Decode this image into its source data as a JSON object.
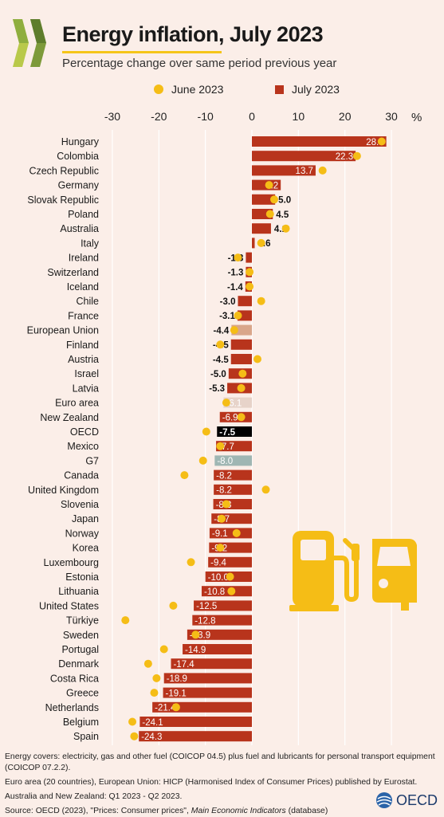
{
  "header": {
    "title": "Energy inflation, July 2023",
    "subtitle": "Percentage change over same period previous year"
  },
  "legend": {
    "june_label": "June 2023",
    "july_label": "July 2023"
  },
  "colors": {
    "bar_default": "#b8341c",
    "bar_oecd": "#000000",
    "bar_european_union": "#d9a68a",
    "bar_euro_area": "#e7d3c9",
    "bar_g7": "#9fb6b3",
    "june_dot": "#f5bd16",
    "accent": "#f5c518",
    "background": "#fbeee8"
  },
  "chart_data": {
    "type": "bar",
    "orientation": "horizontal",
    "x_unit": "%",
    "xlim": [
      -30,
      30
    ],
    "x_ticks": [
      -30,
      -20,
      -10,
      0,
      10,
      20,
      30
    ],
    "grid": true,
    "legend_position": "top",
    "categories": [
      "Hungary",
      "Colombia",
      "Czech Republic",
      "Germany",
      "Slovak Republic",
      "Poland",
      "Australia",
      "Italy",
      "Ireland",
      "Switzerland",
      "Iceland",
      "Chile",
      "France",
      "European Union",
      "Finland",
      "Austria",
      "Israel",
      "Latvia",
      "Euro area",
      "New Zealand",
      "OECD",
      "Mexico",
      "G7",
      "Canada",
      "United Kingdom",
      "Slovenia",
      "Japan",
      "Norway",
      "Korea",
      "Luxembourg",
      "Estonia",
      "Lithuania",
      "United States",
      "Türkiye",
      "Sweden",
      "Portugal",
      "Denmark",
      "Costa Rica",
      "Greece",
      "Netherlands",
      "Belgium",
      "Spain"
    ],
    "series": [
      {
        "name": "July 2023",
        "style": "bar",
        "values": [
          28.9,
          22.3,
          13.7,
          6.2,
          5.0,
          4.5,
          4.1,
          0.6,
          -1.3,
          -1.3,
          -1.4,
          -3.0,
          -3.1,
          -4.4,
          -4.5,
          -4.5,
          -5.0,
          -5.3,
          -6.1,
          -6.9,
          -7.5,
          -7.7,
          -8.0,
          -8.2,
          -8.2,
          -8.3,
          -8.7,
          -9.1,
          -9.2,
          -9.4,
          -10.0,
          -10.8,
          -12.5,
          -12.8,
          -13.9,
          -14.9,
          -17.4,
          -18.9,
          -19.1,
          -21.4,
          -24.1,
          -24.3
        ],
        "labels": [
          "28.9",
          "22.3",
          "13.7",
          "6.2",
          "5.0",
          "4.5",
          "4.1",
          "0.6",
          "-1.3",
          "-1.3",
          "-1.4",
          "-3.0",
          "-3.1",
          "-4.4",
          "-4.5",
          "-4.5",
          "-5.0",
          "-5.3",
          "-6.1",
          "-6.9",
          "-7.5",
          "-7.7",
          "-8.0",
          "-8.2",
          "-8.2",
          "-8.3",
          "-8.7",
          "-9.1",
          "-9.2",
          "-9.4",
          "-10.0",
          "-10.8",
          "-12.5",
          "-12.8",
          "-13.9",
          "-14.9",
          "-17.4",
          "-18.9",
          "-19.1",
          "-21.4",
          "-24.1",
          "-24.3"
        ]
      },
      {
        "name": "June 2023",
        "style": "dot",
        "values": [
          27.9,
          22.6,
          15.2,
          3.7,
          4.8,
          3.9,
          7.3,
          2.0,
          -3.0,
          -0.5,
          -0.5,
          2.0,
          -3.0,
          -3.8,
          -6.8,
          1.2,
          -2.0,
          -2.3,
          -5.5,
          -2.3,
          -9.8,
          -6.8,
          -10.5,
          -14.5,
          3.0,
          -5.5,
          -6.5,
          -3.3,
          -6.8,
          -13.1,
          -4.7,
          -4.4,
          -16.9,
          -27.2,
          -12.1,
          -18.9,
          -22.3,
          -20.5,
          -21.0,
          -16.3,
          -25.7,
          -25.3
        ]
      }
    ]
  },
  "notes": {
    "line1": "Energy covers: electricity, gas and other fuel (COICOP 04.5) plus fuel and lubricants for personal transport equipment (COICOP 07.2.2).",
    "line2": "Euro area (20 countries), European Union: HICP (Harmonised Index of Consumer Prices) published by Eurostat.",
    "line3": "Australia and New Zealand:  Q1 2023 - Q2 2023.",
    "line4_prefix": "Source: OECD (2023), \"Prices: Consumer prices\", ",
    "line4_italic": "Main Economic Indicators",
    "line4_suffix": " (database)"
  },
  "brand": {
    "logo_text": "OECD"
  }
}
